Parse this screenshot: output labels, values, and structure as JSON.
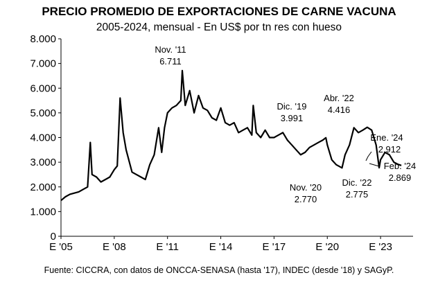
{
  "chart_data": {
    "type": "line",
    "title": "PRECIO PROMEDIO DE EXPORTACIONES DE CARNE VACUNA",
    "subtitle": "2005-2024, mensual - En US$ por tn res con hueso",
    "source": "Fuente: CICCRA, con datos de ONCCA-SENASA (hasta '17), INDEC (desde '18) y SAGyP.",
    "y_ticks": [
      "0",
      "1.000",
      "2.000",
      "3.000",
      "4.000",
      "5.000",
      "6.000",
      "7.000",
      "8.000"
    ],
    "x_ticks": [
      "E '05",
      "E '08",
      "E '11",
      "E '14",
      "E '17",
      "E '20",
      "E '23"
    ],
    "ylim": [
      0,
      8000
    ],
    "grid": false,
    "line_color": "#000000",
    "series": [
      {
        "x": [
          2005.0,
          2005.25,
          2005.5,
          2005.75,
          2006.0,
          2006.25,
          2006.5,
          2006.65,
          2006.75,
          2007.0,
          2007.25,
          2007.5,
          2007.75,
          2008.0,
          2008.17,
          2008.33,
          2008.5,
          2008.67,
          2009.0,
          2009.5,
          2009.75,
          2010.0,
          2010.25,
          2010.5,
          2010.67,
          2010.83,
          2011.0,
          2011.25,
          2011.5,
          2011.75,
          2011.83,
          2012.0,
          2012.25,
          2012.5,
          2012.75,
          2013.0,
          2013.25,
          2013.5,
          2013.75,
          2014.0,
          2014.25,
          2014.5,
          2014.75,
          2015.0,
          2015.25,
          2015.5,
          2015.75,
          2015.83,
          2016.0,
          2016.25,
          2016.5,
          2016.75,
          2017.0,
          2017.25,
          2017.5,
          2017.75,
          2018.0,
          2018.25,
          2018.5,
          2018.75,
          2019.0,
          2019.25,
          2019.5,
          2019.75,
          2019.92,
          2020.0,
          2020.25,
          2020.5,
          2020.83,
          2021.0,
          2021.25,
          2021.5,
          2021.75,
          2022.0,
          2022.25,
          2022.5,
          2022.75,
          2022.92,
          2023.0,
          2023.25,
          2023.5,
          2023.75,
          2024.0,
          2024.17
        ],
        "values": [
          1450,
          1600,
          1700,
          1750,
          1800,
          1900,
          2000,
          3800,
          2500,
          2400,
          2200,
          2300,
          2400,
          2700,
          2850,
          5600,
          4200,
          3500,
          2600,
          2400,
          2300,
          2900,
          3300,
          4400,
          3400,
          4400,
          5000,
          5200,
          5300,
          5500,
          6711,
          5300,
          5900,
          5000,
          5700,
          5200,
          5100,
          4800,
          4700,
          5200,
          4600,
          4500,
          4600,
          4200,
          4300,
          4400,
          4100,
          5300,
          4200,
          4000,
          4300,
          4000,
          4000,
          4100,
          4200,
          3900,
          3700,
          3500,
          3300,
          3400,
          3600,
          3700,
          3800,
          3900,
          3991,
          3700,
          3100,
          2900,
          2770,
          3300,
          3700,
          4400,
          4200,
          4300,
          4416,
          4300,
          3700,
          2775,
          3100,
          3400,
          3300,
          3000,
          2912,
          2869
        ]
      }
    ],
    "annotations": [
      {
        "label": "Nov. '11",
        "value": "6.711"
      },
      {
        "label": "Dic. '19",
        "value": "3.991"
      },
      {
        "label": "Abr. '22",
        "value": "4.416"
      },
      {
        "label": "Ene. '24",
        "value": "2.912"
      },
      {
        "label": "Nov. '20",
        "value": "2.770"
      },
      {
        "label": "Dic. '22",
        "value": "2.775"
      },
      {
        "label": "Feb. '24",
        "value": "2.869"
      }
    ]
  }
}
